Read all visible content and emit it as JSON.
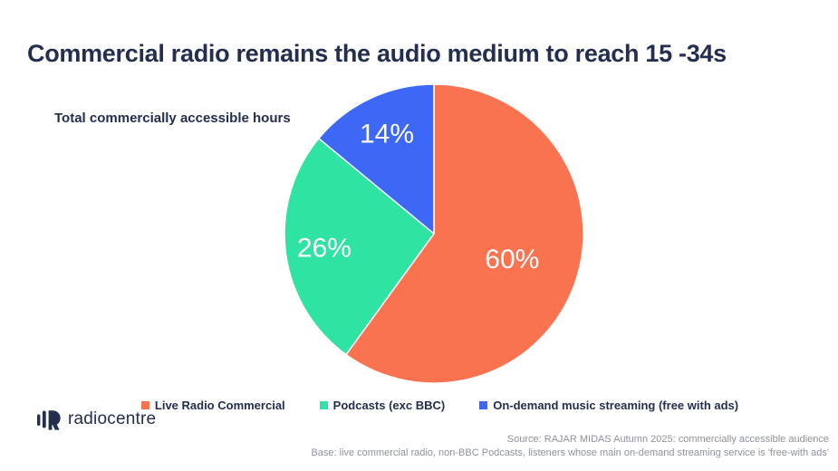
{
  "chart_data": {
    "type": "pie",
    "title": "Commercial radio remains the audio medium to reach 15 -34s",
    "subtitle": "Total commercially accessible hours",
    "start_angle_deg": 0,
    "direction": "clockwise",
    "legend_position": "bottom",
    "slice_separator_color": "#FFFFFF",
    "label_color": "#FFFFFF",
    "slices": [
      {
        "label": "Live Radio Commercial",
        "value": 60,
        "display": "60%",
        "color": "#F97350"
      },
      {
        "label": "Podcasts (exc BBC)",
        "value": 26,
        "display": "26%",
        "color": "#2FE3A3"
      },
      {
        "label": "On-demand music streaming (free with ads)",
        "value": 14,
        "display": "14%",
        "color": "#3D68F5"
      }
    ]
  },
  "footer": {
    "logo_text": "radiocentre",
    "source_line1": "Source: RAJAR MIDAS Autumn 2025: commercially accessible audience",
    "source_line2": "Base: live commercial radio, non-BBC Podcasts, listeners whose main on-demand streaming service is 'free-with ads'"
  },
  "colors": {
    "title_navy": "#242E4F",
    "source_gray": "#8F939E"
  }
}
